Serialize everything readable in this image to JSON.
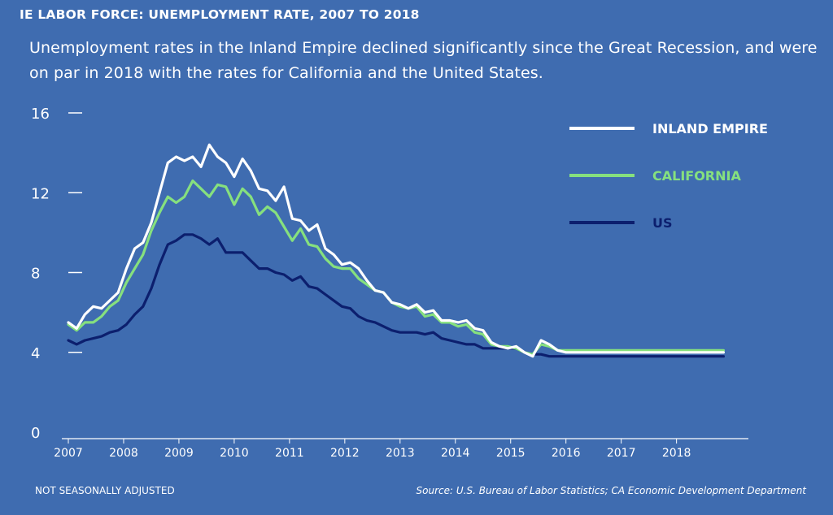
{
  "header": {
    "title": "IE LABOR FORCE: UNEMPLOYMENT RATE, 2007 TO 2018",
    "subtitle": "Unemployment rates in the Inland Empire declined significantly since the Great Recession, and were on par in 2018 with the rates for California and the United States."
  },
  "footer": {
    "note": "NOT SEASONALLY ADJUSTED",
    "source": "Source: U.S. Bureau of Labor Statistics;  CA Economic Development Department"
  },
  "chart_data": {
    "type": "line",
    "title": "IE LABOR FORCE: UNEMPLOYMENT RATE, 2007 TO 2018",
    "xlabel": "",
    "ylabel": "",
    "ylim": [
      0,
      16
    ],
    "xlim": [
      2007,
      2019.3
    ],
    "yticks": [
      0,
      4,
      8,
      12,
      16
    ],
    "xticks": [
      2007,
      2008,
      2009,
      2010,
      2011,
      2012,
      2013,
      2014,
      2015,
      2016,
      2017,
      2018
    ],
    "grid": false,
    "legend_position": "top-right",
    "colors": {
      "background": "#3f6cb0",
      "axis": "#ffffff"
    },
    "series": [
      {
        "name": "INLAND EMPIRE",
        "color": "#ffffff",
        "x": [
          2007.0,
          2007.15,
          2007.3,
          2007.45,
          2007.6,
          2007.75,
          2007.9,
          2008.05,
          2008.2,
          2008.35,
          2008.5,
          2008.65,
          2008.8,
          2008.95,
          2009.1,
          2009.25,
          2009.4,
          2009.55,
          2009.7,
          2009.85,
          2010.0,
          2010.15,
          2010.3,
          2010.45,
          2010.6,
          2010.75,
          2010.9,
          2011.05,
          2011.2,
          2011.35,
          2011.5,
          2011.65,
          2011.8,
          2011.95,
          2012.1,
          2012.25,
          2012.4,
          2012.55,
          2012.7,
          2012.85,
          2013.0,
          2013.15,
          2013.3,
          2013.45,
          2013.6,
          2013.75,
          2013.9,
          2014.05,
          2014.2,
          2014.35,
          2014.5,
          2014.65,
          2014.8,
          2014.95,
          2015.1,
          2015.25,
          2015.4,
          2015.55,
          2015.7,
          2015.85,
          2016.0,
          2016.15,
          2016.3,
          2016.45,
          2016.6,
          2016.75,
          2016.9,
          2017.05,
          2017.2,
          2017.35,
          2017.5,
          2017.65,
          2017.8,
          2017.95,
          2018.1,
          2018.25,
          2018.4,
          2018.55,
          2018.7,
          2018.85
        ],
        "values": [
          5.5,
          5.2,
          5.9,
          6.3,
          6.2,
          6.6,
          7.0,
          8.2,
          9.2,
          9.5,
          10.5,
          12.0,
          13.5,
          13.8,
          13.6,
          13.8,
          13.3,
          14.4,
          13.8,
          13.5,
          12.8,
          13.7,
          13.1,
          12.2,
          12.1,
          11.6,
          12.3,
          10.7,
          10.6,
          10.1,
          10.4,
          9.2,
          8.9,
          8.4,
          8.5,
          8.2,
          7.6,
          7.1,
          7.0,
          6.5,
          6.4,
          6.2,
          6.4,
          6.0,
          6.1,
          5.6,
          5.6,
          5.5,
          5.6,
          5.2,
          5.1,
          4.5,
          4.3,
          4.2,
          4.3,
          4.0,
          3.8,
          4.6,
          4.4,
          4.1,
          4.0,
          4.0,
          4.0,
          4.0,
          4.0,
          4.0,
          4.0,
          4.0,
          4.0,
          4.0,
          4.0,
          4.0,
          4.0,
          4.0,
          4.0,
          4.0,
          4.0,
          4.0,
          4.0,
          4.0
        ]
      },
      {
        "name": "CALIFORNIA",
        "color": "#86e07e",
        "x": [
          2007.0,
          2007.15,
          2007.3,
          2007.45,
          2007.6,
          2007.75,
          2007.9,
          2008.05,
          2008.2,
          2008.35,
          2008.5,
          2008.65,
          2008.8,
          2008.95,
          2009.1,
          2009.25,
          2009.4,
          2009.55,
          2009.7,
          2009.85,
          2010.0,
          2010.15,
          2010.3,
          2010.45,
          2010.6,
          2010.75,
          2010.9,
          2011.05,
          2011.2,
          2011.35,
          2011.5,
          2011.65,
          2011.8,
          2011.95,
          2012.1,
          2012.25,
          2012.4,
          2012.55,
          2012.7,
          2012.85,
          2013.0,
          2013.15,
          2013.3,
          2013.45,
          2013.6,
          2013.75,
          2013.9,
          2014.05,
          2014.2,
          2014.35,
          2014.5,
          2014.65,
          2014.8,
          2014.95,
          2015.1,
          2015.25,
          2015.4,
          2015.55,
          2015.7,
          2015.85,
          2016.0,
          2016.15,
          2016.3,
          2016.45,
          2016.6,
          2016.75,
          2016.9,
          2017.05,
          2017.2,
          2017.35,
          2017.5,
          2017.65,
          2017.8,
          2017.95,
          2018.1,
          2018.25,
          2018.4,
          2018.55,
          2018.7,
          2018.85
        ],
        "values": [
          5.4,
          5.1,
          5.5,
          5.5,
          5.8,
          6.3,
          6.6,
          7.5,
          8.2,
          8.9,
          10.1,
          11.0,
          11.8,
          11.5,
          11.8,
          12.6,
          12.2,
          11.8,
          12.4,
          12.3,
          11.4,
          12.2,
          11.8,
          10.9,
          11.3,
          11.0,
          10.3,
          9.6,
          10.2,
          9.4,
          9.3,
          8.7,
          8.3,
          8.2,
          8.2,
          7.7,
          7.4,
          7.1,
          7.0,
          6.5,
          6.3,
          6.2,
          6.3,
          5.8,
          5.9,
          5.5,
          5.5,
          5.3,
          5.4,
          5.0,
          4.9,
          4.4,
          4.3,
          4.3,
          4.2,
          4.0,
          3.9,
          4.4,
          4.3,
          4.1,
          4.1,
          4.1,
          4.1,
          4.1,
          4.1,
          4.1,
          4.1,
          4.1,
          4.1,
          4.1,
          4.1,
          4.1,
          4.1,
          4.1,
          4.1,
          4.1,
          4.1,
          4.1,
          4.1,
          4.1
        ]
      },
      {
        "name": "US",
        "color": "#0c1f6e",
        "x": [
          2007.0,
          2007.15,
          2007.3,
          2007.45,
          2007.6,
          2007.75,
          2007.9,
          2008.05,
          2008.2,
          2008.35,
          2008.5,
          2008.65,
          2008.8,
          2008.95,
          2009.1,
          2009.25,
          2009.4,
          2009.55,
          2009.7,
          2009.85,
          2010.0,
          2010.15,
          2010.3,
          2010.45,
          2010.6,
          2010.75,
          2010.9,
          2011.05,
          2011.2,
          2011.35,
          2011.5,
          2011.65,
          2011.8,
          2011.95,
          2012.1,
          2012.25,
          2012.4,
          2012.55,
          2012.7,
          2012.85,
          2013.0,
          2013.15,
          2013.3,
          2013.45,
          2013.6,
          2013.75,
          2013.9,
          2014.05,
          2014.2,
          2014.35,
          2014.5,
          2014.65,
          2014.8,
          2014.95,
          2015.1,
          2015.25,
          2015.4,
          2015.55,
          2015.7,
          2015.85,
          2016.0,
          2016.15,
          2016.3,
          2016.45,
          2016.6,
          2016.75,
          2016.9,
          2017.05,
          2017.2,
          2017.35,
          2017.5,
          2017.65,
          2017.8,
          2017.95,
          2018.1,
          2018.25,
          2018.4,
          2018.55,
          2018.7,
          2018.85
        ],
        "values": [
          4.6,
          4.4,
          4.6,
          4.7,
          4.8,
          5.0,
          5.1,
          5.4,
          5.9,
          6.3,
          7.2,
          8.4,
          9.4,
          9.6,
          9.9,
          9.9,
          9.7,
          9.4,
          9.7,
          9.0,
          9.0,
          9.0,
          8.6,
          8.2,
          8.2,
          8.0,
          7.9,
          7.6,
          7.8,
          7.3,
          7.2,
          6.9,
          6.6,
          6.3,
          6.2,
          5.8,
          5.6,
          5.5,
          5.3,
          5.1,
          5.0,
          5.0,
          5.0,
          4.9,
          5.0,
          4.7,
          4.6,
          4.5,
          4.4,
          4.4,
          4.2,
          4.2,
          4.2,
          4.2,
          4.2,
          4.0,
          3.9,
          3.9,
          3.8,
          3.8,
          3.8,
          3.8,
          3.8,
          3.8,
          3.8,
          3.8,
          3.8,
          3.8,
          3.8,
          3.8,
          3.8,
          3.8,
          3.8,
          3.8,
          3.8,
          3.8,
          3.8,
          3.8,
          3.8,
          3.8
        ]
      }
    ]
  }
}
